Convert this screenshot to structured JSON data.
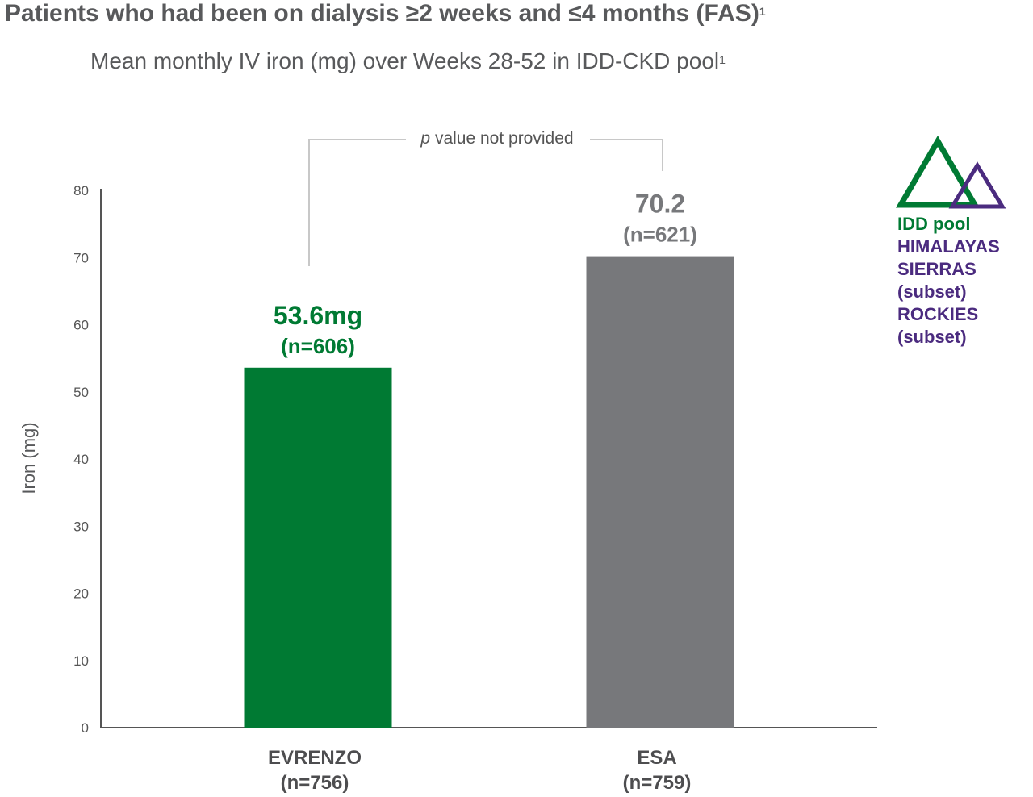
{
  "header": {
    "title": "Patients who had been on dialysis ≥2 weeks and ≤4 months (FAS)",
    "title_sup": "1",
    "subtitle": "Mean monthly IV iron (mg) over Weeks 28-52 in IDD-CKD pool",
    "subtitle_sup": "1"
  },
  "chart_data": {
    "type": "bar",
    "title": "",
    "ylabel": "Iron (mg)",
    "xlabel": "",
    "ylim": [
      0,
      80
    ],
    "yticks": [
      0,
      10,
      20,
      30,
      40,
      50,
      60,
      70,
      80
    ],
    "categories": [
      "EVRENZO",
      "ESA"
    ],
    "category_n": [
      "(n=756)",
      "(n=759)"
    ],
    "values": [
      53.6,
      70.2
    ],
    "value_labels": [
      "53.6mg",
      "70.2"
    ],
    "value_n_labels": [
      "(n=606)",
      "(n=621)"
    ],
    "bar_colors": [
      "#007a33",
      "#77787b"
    ],
    "annotation": {
      "italic": "p",
      "text": " value not provided"
    },
    "grid": false
  },
  "legend": {
    "items": [
      {
        "text": "IDD pool",
        "color": "#007a33"
      },
      {
        "text": "HIMALAYAS",
        "color": "#4b2b7f"
      },
      {
        "text": "SIERRAS",
        "color": "#4b2b7f"
      },
      {
        "text": "(subset)",
        "color": "#4b2b7f"
      },
      {
        "text": "ROCKIES",
        "color": "#4b2b7f"
      },
      {
        "text": "(subset)",
        "color": "#4b2b7f"
      }
    ],
    "icon": "overlapping-triangles-logo"
  }
}
